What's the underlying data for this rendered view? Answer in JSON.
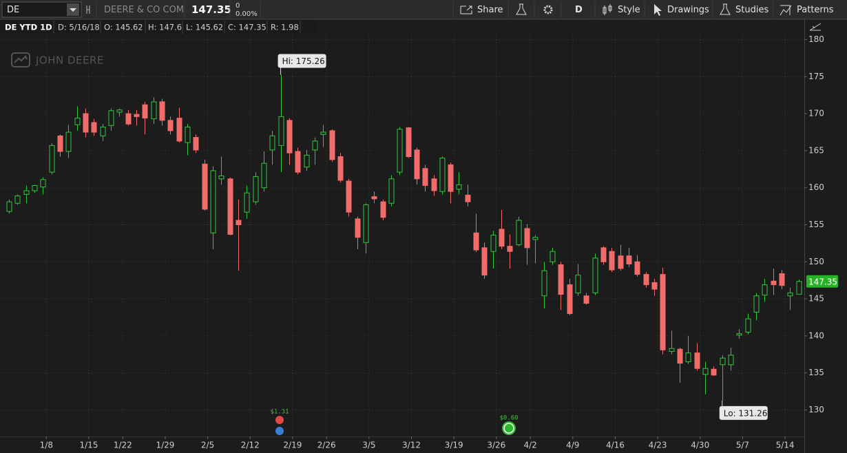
{
  "toolbar": {
    "symbol": "DE",
    "company": "DEERE & CO COM",
    "last_price": "147.35",
    "change": "0",
    "change_pct": "0.00%",
    "buttons": [
      "Share",
      "D",
      "Style",
      "Drawings",
      "Studies",
      "Patterns"
    ]
  },
  "header": {
    "title": "DE YTD 1D",
    "date": "D: 5/16/18",
    "open": "O: 145.62",
    "high": "H: 147.6",
    "low": "L: 145.62",
    "close": "C: 147.35",
    "range": "R: 1.98"
  },
  "watermark": "JOHN DEERE",
  "chart_data": {
    "type": "candlestick",
    "up_color": "#2fc93b",
    "down_color": "#f26b6b",
    "hi_label": "Hi: 175.26",
    "lo_label": "Lo: 131.26",
    "events": [
      "$1.31",
      "$0.60"
    ],
    "ylim": [
      126.6,
      180.7
    ],
    "yticks": [
      130,
      135,
      140,
      145,
      150,
      155,
      160,
      165,
      170,
      175,
      180
    ],
    "grid": true,
    "categories": [
      null,
      null,
      null,
      null,
      "1/8",
      null,
      null,
      null,
      null,
      "1/15",
      null,
      null,
      null,
      "1/22",
      null,
      null,
      null,
      null,
      "1/29",
      null,
      null,
      null,
      null,
      "2/5",
      null,
      null,
      null,
      null,
      "2/12",
      null,
      null,
      null,
      null,
      "2/19",
      null,
      null,
      null,
      "2/26",
      null,
      null,
      null,
      null,
      "3/5",
      null,
      null,
      null,
      null,
      "3/12",
      null,
      null,
      null,
      null,
      "3/19",
      null,
      null,
      null,
      null,
      "3/26",
      null,
      null,
      null,
      "4/2",
      null,
      null,
      null,
      null,
      "4/9",
      null,
      null,
      null,
      null,
      "4/16",
      null,
      null,
      null,
      null,
      "4/23",
      null,
      null,
      null,
      null,
      "4/30",
      null,
      null,
      null,
      null,
      "5/7",
      null,
      null,
      null,
      null,
      "5/14",
      null,
      null
    ],
    "open": [
      156.8,
      157.9,
      159.1,
      159.6,
      160.1,
      162.1,
      167.0,
      164.9,
      168.5,
      170.0,
      168.8,
      167.0,
      168.4,
      170.2,
      170.0,
      169.9,
      171.2,
      169.3,
      171.6,
      169.1,
      169.4,
      166.1,
      166.8,
      163.2,
      153.9,
      161.2,
      161.2,
      155.6,
      156.7,
      158.1,
      160.0,
      165.1,
      165.7,
      169.1,
      164.9,
      162.8,
      165.1,
      167.2,
      167.7,
      164.2,
      160.9,
      155.8,
      152.6,
      158.8,
      158.1,
      157.9,
      162.1,
      168.1,
      165.1,
      162.6,
      161.2,
      159.5,
      163.1,
      159.8,
      159.0,
      153.9,
      151.9,
      151.4,
      154.4,
      152.1,
      152.3,
      154.5,
      153.0,
      145.4,
      150.0,
      149.6,
      146.9,
      145.8,
      145.4,
      145.8,
      151.9,
      151.4,
      150.8,
      150.8,
      150.0,
      148.3,
      147.2,
      148.3,
      137.9,
      138.2,
      136.5,
      137.7,
      134.8,
      135.5,
      136.1,
      136.1,
      140.1,
      140.5,
      143.2,
      145.5,
      147.4,
      148.4,
      145.4,
      145.62
    ],
    "high": [
      158.4,
      159.1,
      160.3,
      160.4,
      161.4,
      166.0,
      167.2,
      168.5,
      171.0,
      170.7,
      169.3,
      168.6,
      170.7,
      170.7,
      170.5,
      170.5,
      171.6,
      172.2,
      172.0,
      169.6,
      170.8,
      168.6,
      167.2,
      163.8,
      162.9,
      164.2,
      161.4,
      158.4,
      160.3,
      162.1,
      164.9,
      167.7,
      175.26,
      169.4,
      165.4,
      165.1,
      166.8,
      168.5,
      167.9,
      164.7,
      161.2,
      156.1,
      157.9,
      159.5,
      158.4,
      161.7,
      168.2,
      168.2,
      165.4,
      163.1,
      161.7,
      164.2,
      163.4,
      162.1,
      160.4,
      156.5,
      152.6,
      154.2,
      157.0,
      153.7,
      156.1,
      155.1,
      153.6,
      150.0,
      151.9,
      150.0,
      147.7,
      149.7,
      145.8,
      151.1,
      152.1,
      151.9,
      152.3,
      151.9,
      150.9,
      148.6,
      147.7,
      149.2,
      140.7,
      138.4,
      140.0,
      139.0,
      136.5,
      135.9,
      137.4,
      138.4,
      140.9,
      143.0,
      145.8,
      147.7,
      149.1,
      148.9,
      146.5,
      147.6
    ],
    "low": [
      156.5,
      157.7,
      157.9,
      159.3,
      159.1,
      161.8,
      164.2,
      164.0,
      167.7,
      166.8,
      167.0,
      166.3,
      167.7,
      169.6,
      168.4,
      168.4,
      167.2,
      168.6,
      168.4,
      167.2,
      166.1,
      164.4,
      164.7,
      156.9,
      151.7,
      160.4,
      153.6,
      148.8,
      155.8,
      157.7,
      159.5,
      163.1,
      162.1,
      163.1,
      161.8,
      162.3,
      163.1,
      165.5,
      163.5,
      160.7,
      156.1,
      151.7,
      151.1,
      157.9,
      155.6,
      157.5,
      161.7,
      164.0,
      160.4,
      159.5,
      158.9,
      159.1,
      157.9,
      159.1,
      157.5,
      151.3,
      147.7,
      149.1,
      151.7,
      149.1,
      152.1,
      149.6,
      149.8,
      143.7,
      149.6,
      143.5,
      142.8,
      145.4,
      144.2,
      145.5,
      149.6,
      148.6,
      148.8,
      149.3,
      148.0,
      146.5,
      145.4,
      137.5,
      137.5,
      133.7,
      136.2,
      135.3,
      132.1,
      134.6,
      131.26,
      135.3,
      139.6,
      140.2,
      142.1,
      144.6,
      145.5,
      146.3,
      143.5,
      145.62
    ],
    "close": [
      158.1,
      158.9,
      159.6,
      160.3,
      161.1,
      165.7,
      164.9,
      167.5,
      169.4,
      167.5,
      167.5,
      168.2,
      170.4,
      170.5,
      168.6,
      169.6,
      169.4,
      171.6,
      169.1,
      167.7,
      166.3,
      168.2,
      165.1,
      157.1,
      162.3,
      161.6,
      153.7,
      155.0,
      159.3,
      161.5,
      163.3,
      167.0,
      169.6,
      164.7,
      162.1,
      164.4,
      166.3,
      167.5,
      163.8,
      161.0,
      156.7,
      153.3,
      157.7,
      158.5,
      156.0,
      161.2,
      167.9,
      164.2,
      161.2,
      160.3,
      159.6,
      164.0,
      159.5,
      160.4,
      158.1,
      151.6,
      148.2,
      153.6,
      152.1,
      151.4,
      155.6,
      151.9,
      153.3,
      148.8,
      151.4,
      145.6,
      143.0,
      148.2,
      144.4,
      150.5,
      150.0,
      148.9,
      149.1,
      149.7,
      148.3,
      146.9,
      146.3,
      138.1,
      138.3,
      136.3,
      137.7,
      135.6,
      135.6,
      134.7,
      137.0,
      137.4,
      140.3,
      142.3,
      145.4,
      146.9,
      146.9,
      146.8,
      145.8,
      147.35
    ]
  }
}
